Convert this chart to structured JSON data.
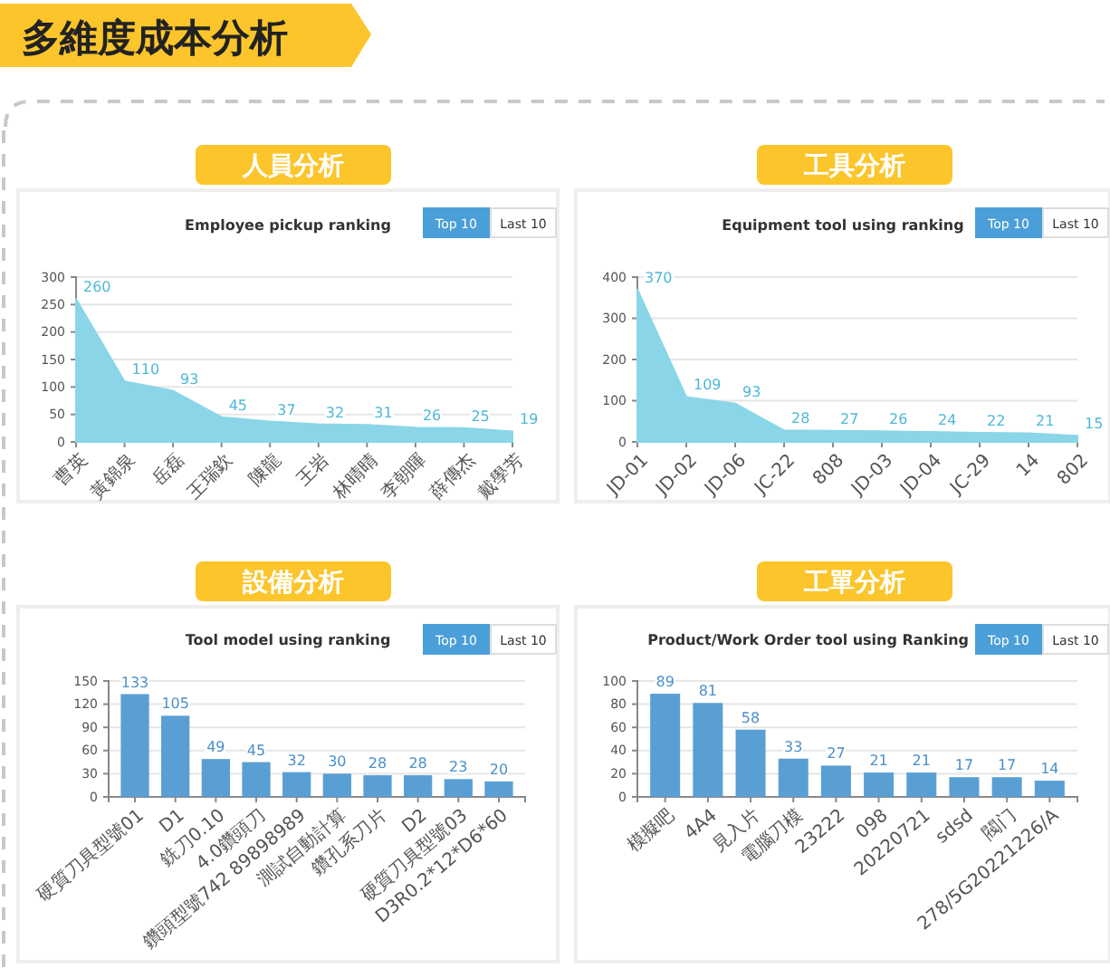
{
  "chart_data": [
    {
      "type": "other",
      "title": "多維度成本分析"
    },
    {
      "type": "area",
      "title": "人員分析",
      "subtitle": "Employee pickup ranking",
      "categories": [
        "曹英",
        "黃錦泉",
        "岳磊",
        "王瑞欽",
        "陳龍",
        "王岩",
        "林晴晴",
        "李朝暉",
        "薛傳杰",
        "戴學芳"
      ],
      "values": [
        260,
        110,
        93,
        45,
        37,
        32,
        31,
        26,
        25,
        19
      ],
      "color": "#8ad6e8",
      "ylim": [
        0,
        300
      ],
      "yticks": [
        0,
        50,
        100,
        150,
        200,
        250,
        300
      ],
      "grid": "y",
      "data_labels": true,
      "annotations": [
        "Top 10",
        "Last 10"
      ]
    },
    {
      "type": "area",
      "title": "工具分析",
      "subtitle": "Equipment tool using ranking",
      "categories": [
        "JD-01",
        "JD-02",
        "JD-06",
        "JC-22",
        "808",
        "JD-03",
        "JD-04",
        "JC-29",
        "14",
        "802"
      ],
      "values": [
        370,
        109,
        93,
        28,
        27,
        26,
        24,
        22,
        21,
        15
      ],
      "color": "#8ad6e8",
      "ylim": [
        0,
        400
      ],
      "yticks": [
        0,
        100,
        200,
        300,
        400
      ],
      "grid": "y",
      "data_labels": true,
      "annotations": [
        "Top 10",
        "Last 10"
      ]
    },
    {
      "type": "bar",
      "title": "設備分析",
      "subtitle": "Tool model using ranking",
      "categories": [
        "硬質刀具型號01",
        "D1",
        "銑刀0.10",
        "4.0鑽頭刀",
        "鑽頭型號742 89898989",
        "測試自動計算",
        "鑽孔系刀片",
        "D2",
        "硬質刀具型號03",
        "D3R0.2*12*D6*60"
      ],
      "values": [
        133,
        105,
        49,
        45,
        32,
        30,
        28,
        28,
        23,
        20
      ],
      "color": "#5a9fd4",
      "ylim": [
        0,
        150
      ],
      "yticks": [
        0,
        30,
        60,
        90,
        120,
        150
      ],
      "grid": "y",
      "data_labels": true,
      "annotations": [
        "Top 10",
        "Last 10"
      ]
    },
    {
      "type": "bar",
      "title": "工單分析",
      "subtitle": "Product/Work Order tool using Ranking",
      "categories": [
        "模擬吧",
        "4A4",
        "見入片",
        "電腦刀模",
        "23222",
        "098",
        "20220721",
        "sdsd",
        "閥门",
        "278/5G20221226/A"
      ],
      "values": [
        89,
        81,
        58,
        33,
        27,
        21,
        21,
        17,
        17,
        14
      ],
      "color": "#5a9fd4",
      "ylim": [
        0,
        100
      ],
      "yticks": [
        0,
        20,
        40,
        60,
        80,
        100
      ],
      "grid": "y",
      "data_labels": true,
      "annotations": [
        "Top 10",
        "Last 10"
      ]
    }
  ]
}
